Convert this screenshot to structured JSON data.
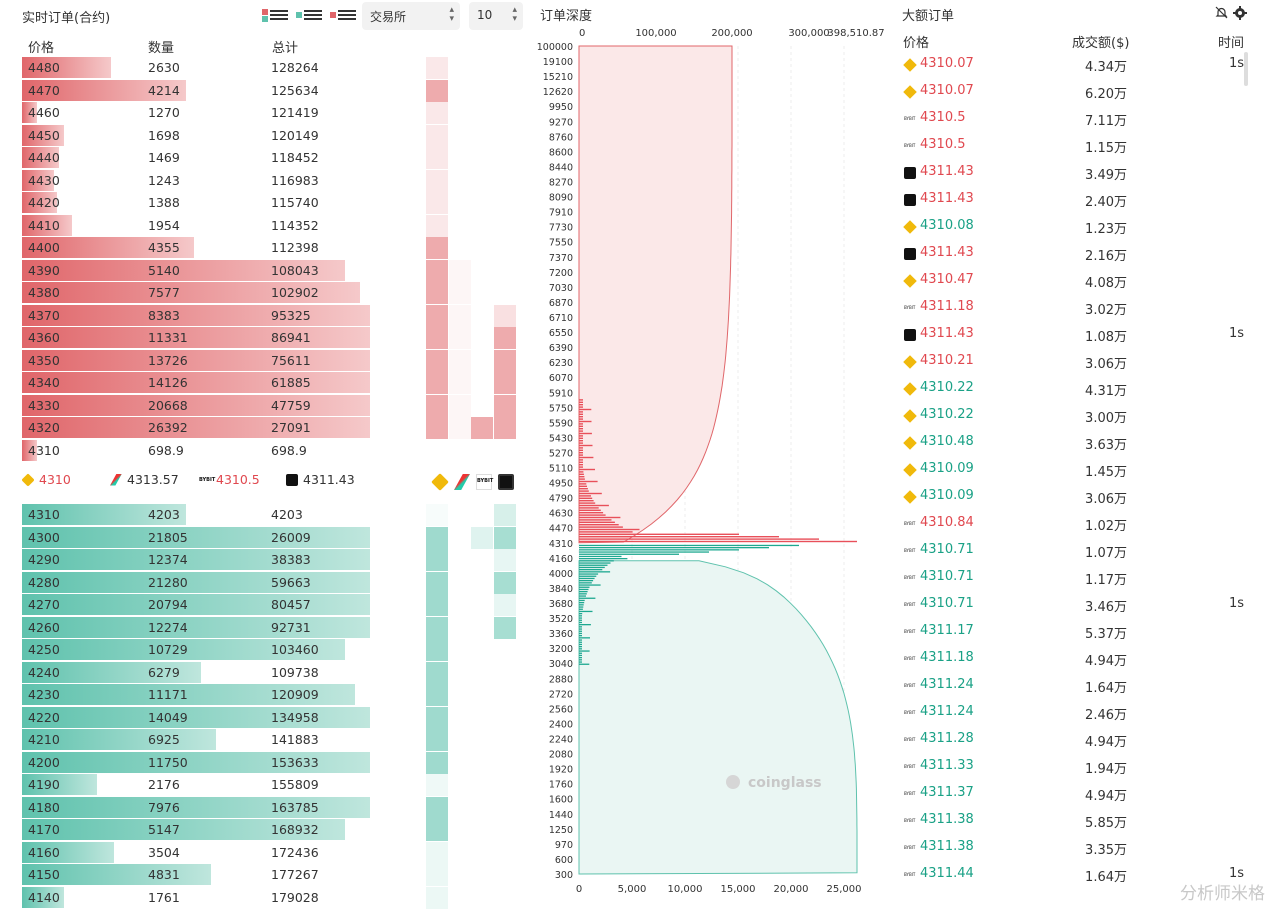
{
  "left": {
    "title": "实时订单(合约)",
    "exchange_select": "交易所",
    "depth_select": "10",
    "col_price": "价格",
    "col_qty": "数量",
    "col_total": "总计",
    "asks": [
      {
        "price": "4480",
        "qty": "2630",
        "total": "128264",
        "pct": 0.18
      },
      {
        "price": "4470",
        "qty": "4214",
        "total": "125634",
        "pct": 0.33
      },
      {
        "price": "4460",
        "qty": "1270",
        "total": "121419",
        "pct": 0.03
      },
      {
        "price": "4450",
        "qty": "1698",
        "total": "120149",
        "pct": 0.085
      },
      {
        "price": "4440",
        "qty": "1469",
        "total": "118452",
        "pct": 0.075
      },
      {
        "price": "4430",
        "qty": "1243",
        "total": "116983",
        "pct": 0.065
      },
      {
        "price": "4420",
        "qty": "1388",
        "total": "115740",
        "pct": 0.07
      },
      {
        "price": "4410",
        "qty": "1954",
        "total": "114352",
        "pct": 0.1
      },
      {
        "price": "4400",
        "qty": "4355",
        "total": "112398",
        "pct": 0.345
      },
      {
        "price": "4390",
        "qty": "5140",
        "total": "108043",
        "pct": 0.65
      },
      {
        "price": "4380",
        "qty": "7577",
        "total": "102902",
        "pct": 0.68
      },
      {
        "price": "4370",
        "qty": "8383",
        "total": "95325",
        "pct": 0.7
      },
      {
        "price": "4360",
        "qty": "11331",
        "total": "86941",
        "pct": 0.7
      },
      {
        "price": "4350",
        "qty": "13726",
        "total": "75611",
        "pct": 0.7
      },
      {
        "price": "4340",
        "qty": "14126",
        "total": "61885",
        "pct": 0.7
      },
      {
        "price": "4330",
        "qty": "20668",
        "total": "47759",
        "pct": 0.7
      },
      {
        "price": "4320",
        "qty": "26392",
        "total": "27091",
        "pct": 0.7
      },
      {
        "price": "4310",
        "qty": "698.9",
        "total": "698.9",
        "pct": 0.03
      }
    ],
    "bids": [
      {
        "price": "4310",
        "qty": "4203",
        "total": "4203",
        "pct": 0.33
      },
      {
        "price": "4300",
        "qty": "21805",
        "total": "26009",
        "pct": 0.7
      },
      {
        "price": "4290",
        "qty": "12374",
        "total": "38383",
        "pct": 0.7
      },
      {
        "price": "4280",
        "qty": "21280",
        "total": "59663",
        "pct": 0.7
      },
      {
        "price": "4270",
        "qty": "20794",
        "total": "80457",
        "pct": 0.7
      },
      {
        "price": "4260",
        "qty": "12274",
        "total": "92731",
        "pct": 0.7
      },
      {
        "price": "4250",
        "qty": "10729",
        "total": "103460",
        "pct": 0.65
      },
      {
        "price": "4240",
        "qty": "6279",
        "total": "109738",
        "pct": 0.36
      },
      {
        "price": "4230",
        "qty": "11171",
        "total": "120909",
        "pct": 0.67
      },
      {
        "price": "4220",
        "qty": "14049",
        "total": "134958",
        "pct": 0.7
      },
      {
        "price": "4210",
        "qty": "6925",
        "total": "141883",
        "pct": 0.39
      },
      {
        "price": "4200",
        "qty": "11750",
        "total": "153633",
        "pct": 0.7
      },
      {
        "price": "4190",
        "qty": "2176",
        "total": "155809",
        "pct": 0.15
      },
      {
        "price": "4180",
        "qty": "7976",
        "total": "163785",
        "pct": 0.7
      },
      {
        "price": "4170",
        "qty": "5147",
        "total": "168932",
        "pct": 0.65
      },
      {
        "price": "4160",
        "qty": "3504",
        "total": "172436",
        "pct": 0.185
      },
      {
        "price": "4150",
        "qty": "4831",
        "total": "177267",
        "pct": 0.38
      },
      {
        "price": "4140",
        "qty": "1761",
        "total": "179028",
        "pct": 0.085
      }
    ],
    "exchanges": [
      {
        "name": "binance",
        "price": "4310",
        "color": "red",
        "logo": "logo-bn"
      },
      {
        "name": "huobi",
        "price": "4313.57",
        "color": "dark",
        "logo": "logo-hb"
      },
      {
        "name": "bybit",
        "price": "4310.5",
        "color": "red",
        "logo": "logo-bybit"
      },
      {
        "name": "okx",
        "price": "4311.43",
        "color": "dark",
        "logo": "logo-okx"
      }
    ]
  },
  "mid": {
    "title": "订单深度",
    "top_ticks": [
      "0",
      "100,000",
      "200,000",
      "300,000",
      "398,510.87"
    ],
    "bottom_ticks": [
      "0",
      "5,000",
      "10,000",
      "15,000",
      "20,000",
      "25,000"
    ],
    "price_labels": [
      "100000",
      "19100",
      "15210",
      "12620",
      "9950",
      "9270",
      "8760",
      "8600",
      "8440",
      "8270",
      "8090",
      "7910",
      "7730",
      "7550",
      "7370",
      "7200",
      "7030",
      "6870",
      "6710",
      "6550",
      "6390",
      "6230",
      "6070",
      "5910",
      "5750",
      "5590",
      "5430",
      "5270",
      "5110",
      "4950",
      "4790",
      "4630",
      "4470",
      "4310",
      "4160",
      "4000",
      "3840",
      "3680",
      "3520",
      "3360",
      "3200",
      "3040",
      "2880",
      "2720",
      "2560",
      "2400",
      "2240",
      "2080",
      "1920",
      "1760",
      "1600",
      "1440",
      "1250",
      "970",
      "600",
      "300"
    ],
    "watermark": "coinglass"
  },
  "right": {
    "title": "大额订单",
    "col_price": "价格",
    "col_amount": "成交额($)",
    "col_time": "时间",
    "rows": [
      {
        "ex": "bn",
        "price": "4310.07",
        "side": "red",
        "amt": "4.34万",
        "time": "1s"
      },
      {
        "ex": "bn",
        "price": "4310.07",
        "side": "red",
        "amt": "6.20万",
        "time": ""
      },
      {
        "ex": "bybit",
        "price": "4310.5",
        "side": "red",
        "amt": "7.11万",
        "time": ""
      },
      {
        "ex": "bybit",
        "price": "4310.5",
        "side": "red",
        "amt": "1.15万",
        "time": ""
      },
      {
        "ex": "okx",
        "price": "4311.43",
        "side": "red",
        "amt": "3.49万",
        "time": ""
      },
      {
        "ex": "okx",
        "price": "4311.43",
        "side": "red",
        "amt": "2.40万",
        "time": ""
      },
      {
        "ex": "bn",
        "price": "4310.08",
        "side": "green",
        "amt": "1.23万",
        "time": ""
      },
      {
        "ex": "okx",
        "price": "4311.43",
        "side": "red",
        "amt": "2.16万",
        "time": ""
      },
      {
        "ex": "bn",
        "price": "4310.47",
        "side": "red",
        "amt": "4.08万",
        "time": ""
      },
      {
        "ex": "bybit",
        "price": "4311.18",
        "side": "red",
        "amt": "3.02万",
        "time": ""
      },
      {
        "ex": "okx",
        "price": "4311.43",
        "side": "red",
        "amt": "1.08万",
        "time": "1s"
      },
      {
        "ex": "bn",
        "price": "4310.21",
        "side": "red",
        "amt": "3.06万",
        "time": ""
      },
      {
        "ex": "bn",
        "price": "4310.22",
        "side": "green",
        "amt": "4.31万",
        "time": ""
      },
      {
        "ex": "bn",
        "price": "4310.22",
        "side": "green",
        "amt": "3.00万",
        "time": ""
      },
      {
        "ex": "bn",
        "price": "4310.48",
        "side": "green",
        "amt": "3.63万",
        "time": ""
      },
      {
        "ex": "bn",
        "price": "4310.09",
        "side": "green",
        "amt": "1.45万",
        "time": ""
      },
      {
        "ex": "bn",
        "price": "4310.09",
        "side": "green",
        "amt": "3.06万",
        "time": ""
      },
      {
        "ex": "bybit",
        "price": "4310.84",
        "side": "red",
        "amt": "1.02万",
        "time": ""
      },
      {
        "ex": "bybit",
        "price": "4310.71",
        "side": "green",
        "amt": "1.07万",
        "time": ""
      },
      {
        "ex": "bybit",
        "price": "4310.71",
        "side": "green",
        "amt": "1.17万",
        "time": ""
      },
      {
        "ex": "bybit",
        "price": "4310.71",
        "side": "green",
        "amt": "3.46万",
        "time": "1s"
      },
      {
        "ex": "bybit",
        "price": "4311.17",
        "side": "green",
        "amt": "5.37万",
        "time": ""
      },
      {
        "ex": "bybit",
        "price": "4311.18",
        "side": "green",
        "amt": "4.94万",
        "time": ""
      },
      {
        "ex": "bybit",
        "price": "4311.24",
        "side": "green",
        "amt": "1.64万",
        "time": ""
      },
      {
        "ex": "bybit",
        "price": "4311.24",
        "side": "green",
        "amt": "2.46万",
        "time": ""
      },
      {
        "ex": "bybit",
        "price": "4311.28",
        "side": "green",
        "amt": "4.94万",
        "time": ""
      },
      {
        "ex": "bybit",
        "price": "4311.33",
        "side": "green",
        "amt": "1.94万",
        "time": ""
      },
      {
        "ex": "bybit",
        "price": "4311.37",
        "side": "green",
        "amt": "4.94万",
        "time": ""
      },
      {
        "ex": "bybit",
        "price": "4311.38",
        "side": "green",
        "amt": "5.85万",
        "time": ""
      },
      {
        "ex": "bybit",
        "price": "4311.38",
        "side": "green",
        "amt": "3.35万",
        "time": ""
      },
      {
        "ex": "bybit",
        "price": "4311.44",
        "side": "green",
        "amt": "1.64万",
        "time": "1s"
      }
    ],
    "watermark": "分析师米格"
  },
  "colors": {
    "ask": "#e0666a",
    "ask_light": "#f5c9ca",
    "bid": "#5fc2ad",
    "bid_light": "#bfe6dd",
    "red_text": "#e0484f",
    "green_text": "#1aa186"
  }
}
